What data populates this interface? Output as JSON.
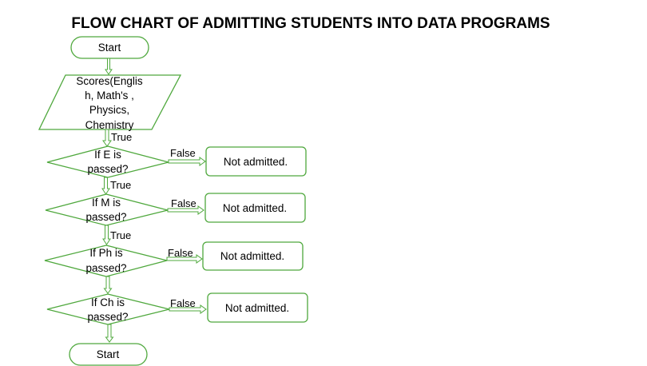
{
  "title": "FLOW CHART OF ADMITTING STUDENTS INTO DATA PROGRAMS",
  "start_top": "Start",
  "input_lines": [
    "Scores(Englis",
    "h, Math's ,",
    "Physics,",
    "Chemistry"
  ],
  "true_labels": [
    "True",
    "True",
    "True"
  ],
  "decisions": [
    {
      "lines": [
        "If E is",
        "passed?"
      ],
      "false_label": "False",
      "outcome": "Not admitted."
    },
    {
      "lines": [
        "If M is",
        "passed?"
      ],
      "false_label": "False",
      "outcome": "Not admitted."
    },
    {
      "lines": [
        "If Ph is",
        "passed?"
      ],
      "false_label": "False",
      "outcome": "Not admitted."
    },
    {
      "lines": [
        "If Ch is",
        "passed?"
      ],
      "false_label": "False",
      "outcome": "Not admitted."
    }
  ],
  "start_bottom": "Start",
  "colors": {
    "stroke": "#4fa83d",
    "text": "#000000"
  }
}
